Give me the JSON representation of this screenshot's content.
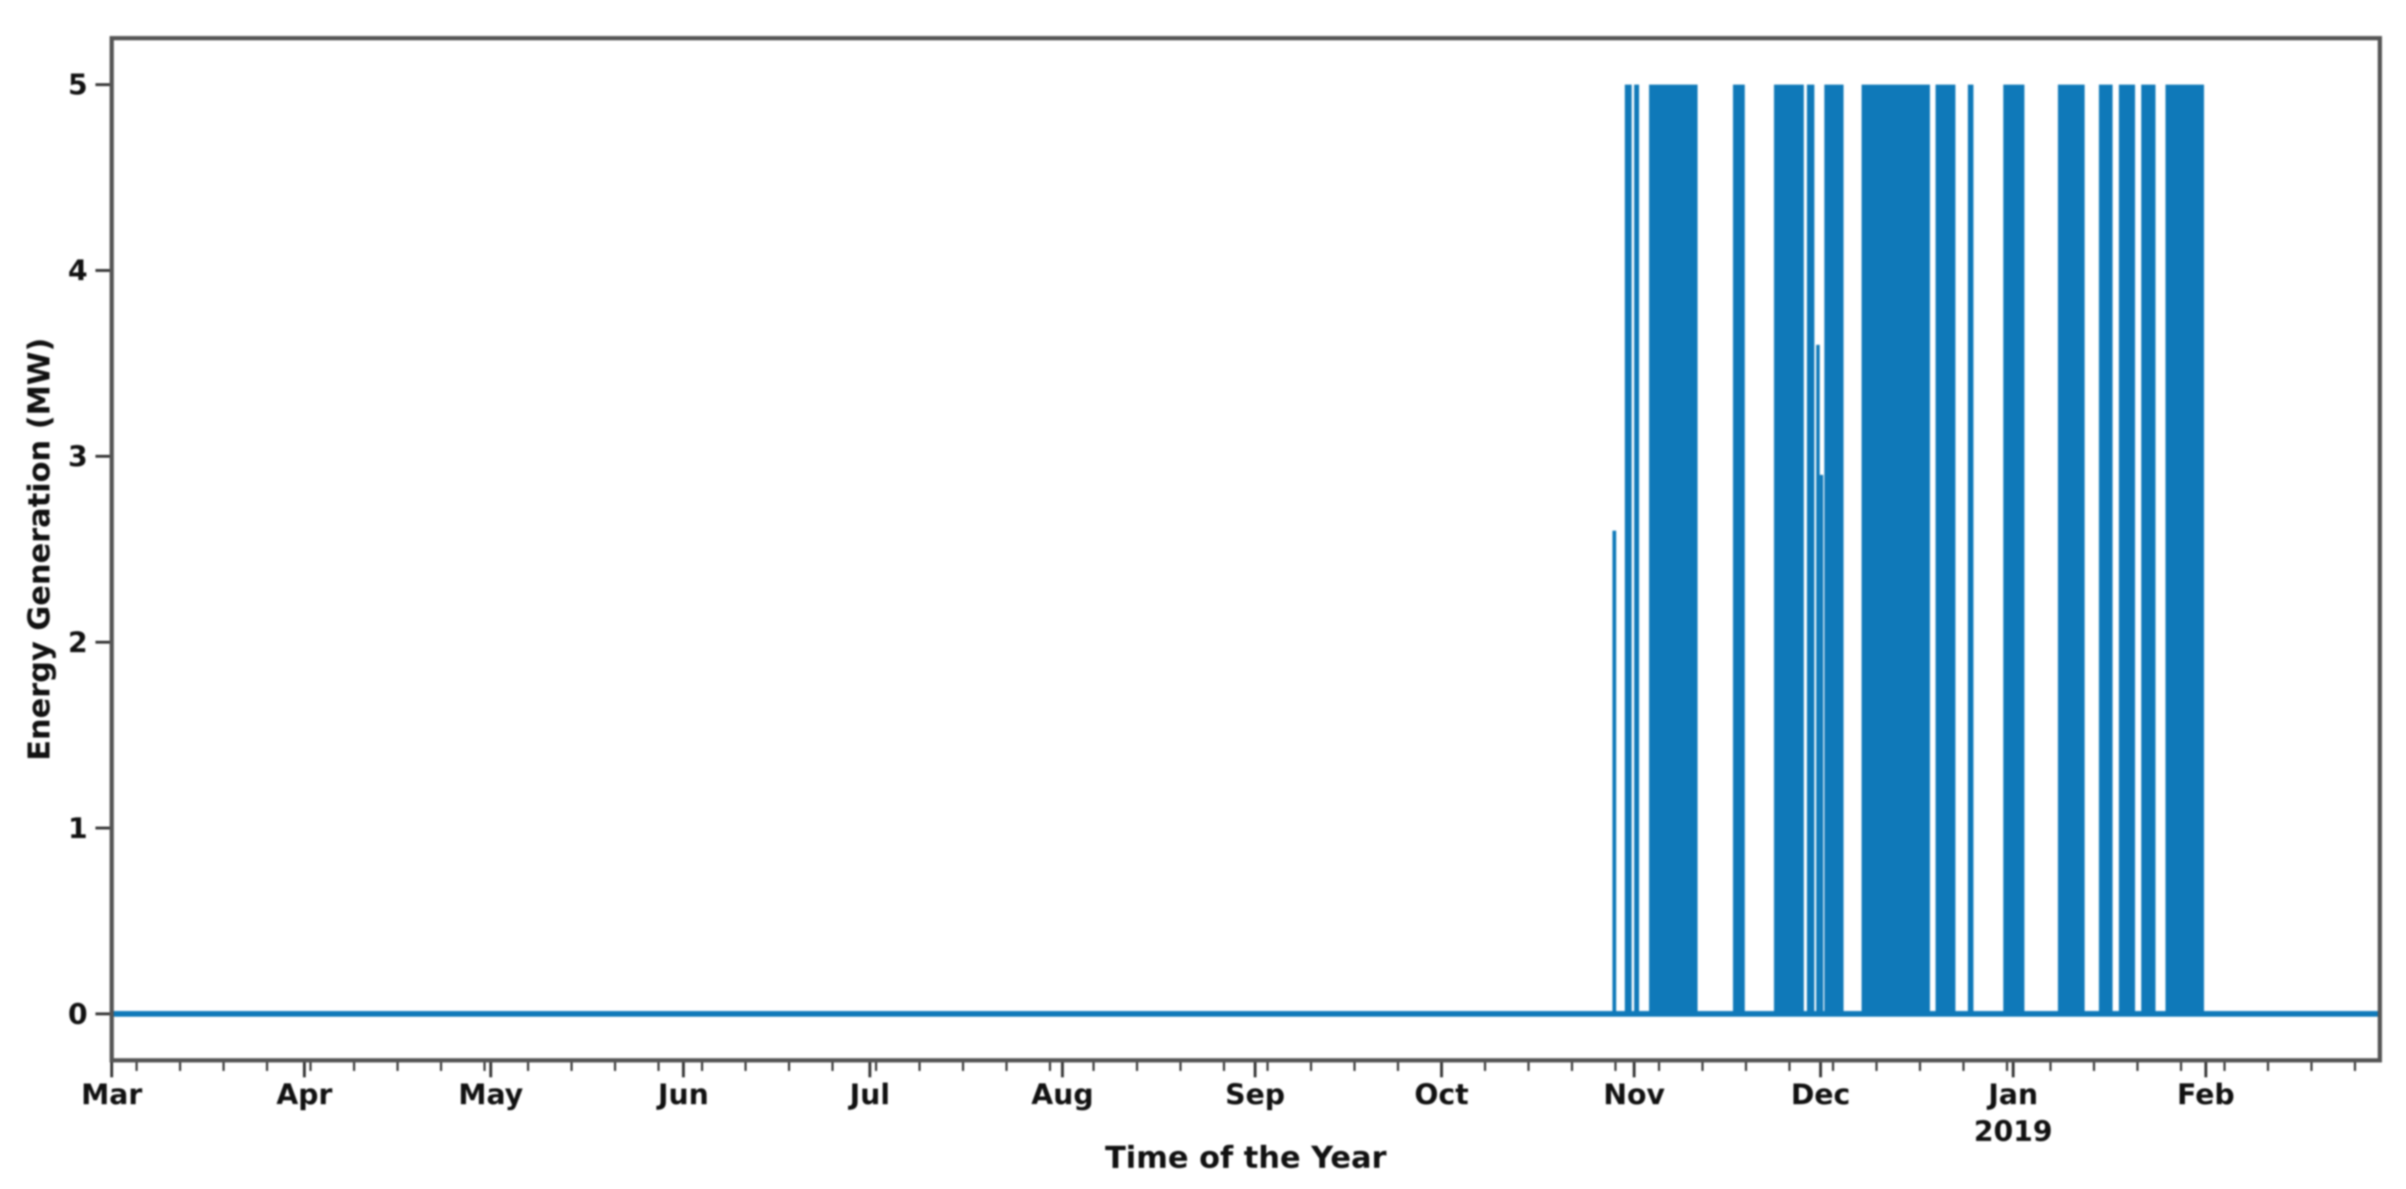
{
  "chart_data": {
    "type": "line",
    "title": "",
    "series_name": "Energy Generation",
    "xlabel": "Time of the Year",
    "ylabel": "Energy Generation (MW)",
    "xlim_days": [
      0,
      365
    ],
    "ylim": [
      -0.25,
      5.25
    ],
    "grid": false,
    "legend": false,
    "yticks": [
      0,
      1,
      2,
      3,
      4,
      5
    ],
    "xticks": [
      {
        "label": "Mar",
        "day": 0
      },
      {
        "label": "Apr",
        "day": 31
      },
      {
        "label": "May",
        "day": 61
      },
      {
        "label": "Jun",
        "day": 92
      },
      {
        "label": "Jul",
        "day": 122
      },
      {
        "label": "Aug",
        "day": 153
      },
      {
        "label": "Sep",
        "day": 184
      },
      {
        "label": "Oct",
        "day": 214
      },
      {
        "label": "Nov",
        "day": 245
      },
      {
        "label": "Dec",
        "day": 275
      },
      {
        "label": "Jan",
        "day": 306,
        "sublabel": "2019"
      },
      {
        "label": "Feb",
        "day": 337
      }
    ],
    "minor_xticks": {
      "start_day": 4,
      "step_days": 7,
      "end_day": 365
    },
    "baseline_mw": 0,
    "pulses_days": [
      {
        "start": 241.5,
        "end": 242.1,
        "mw": 2.6
      },
      {
        "start": 243.5,
        "end": 244.6,
        "mw": 5
      },
      {
        "start": 245.0,
        "end": 245.8,
        "mw": 5
      },
      {
        "start": 247.4,
        "end": 255.2,
        "mw": 5
      },
      {
        "start": 260.9,
        "end": 262.8,
        "mw": 5
      },
      {
        "start": 267.5,
        "end": 272.3,
        "mw": 5
      },
      {
        "start": 272.8,
        "end": 274.0,
        "mw": 5
      },
      {
        "start": 274.3,
        "end": 274.65,
        "mw": 3.6
      },
      {
        "start": 274.85,
        "end": 275.2,
        "mw": 2.9
      },
      {
        "start": 275.6,
        "end": 278.7,
        "mw": 5
      },
      {
        "start": 281.6,
        "end": 292.6,
        "mw": 5
      },
      {
        "start": 293.5,
        "end": 296.7,
        "mw": 5
      },
      {
        "start": 298.7,
        "end": 299.6,
        "mw": 5
      },
      {
        "start": 304.4,
        "end": 307.8,
        "mw": 5
      },
      {
        "start": 313.2,
        "end": 317.5,
        "mw": 5
      },
      {
        "start": 319.8,
        "end": 322.0,
        "mw": 5
      },
      {
        "start": 323.0,
        "end": 325.6,
        "mw": 5
      },
      {
        "start": 326.6,
        "end": 328.9,
        "mw": 5
      },
      {
        "start": 330.5,
        "end": 336.7,
        "mw": 5
      }
    ],
    "colors": {
      "series": "#0f79b9",
      "spine": "#555555",
      "tick": "#333333",
      "text": "#111111",
      "background": "#ffffff"
    }
  }
}
